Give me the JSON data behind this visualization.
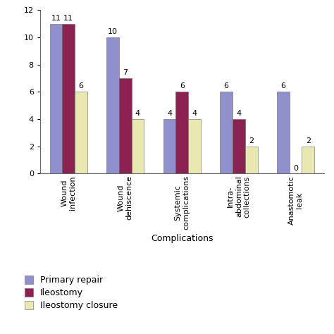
{
  "categories": [
    "Wound\ninfection",
    "Wound\ndehiscence",
    "Systemic\ncomplications",
    "Intra-\nabdominal\ncollections",
    "Anastomotic\nleak"
  ],
  "series": {
    "Primary repair": [
      11,
      10,
      4,
      6,
      6
    ],
    "Ileostomy": [
      11,
      7,
      6,
      4,
      0
    ],
    "Ileostomy closure": [
      6,
      4,
      4,
      2,
      2
    ]
  },
  "colors": {
    "Primary repair": "#9090cc",
    "Ileostomy": "#8b2252",
    "Ileostomy closure": "#e8e8b0"
  },
  "floor_color": "#aaaaaa",
  "xlabel": "Complications",
  "ylim": [
    0,
    12
  ],
  "yticks": [
    0,
    2,
    4,
    6,
    8,
    10,
    12
  ],
  "legend_labels": [
    "Primary repair",
    "Ileostomy",
    "Ileostomy closure"
  ],
  "bar_width": 0.22,
  "axis_fontsize": 9,
  "tick_fontsize": 8,
  "label_fontsize": 8,
  "legend_fontsize": 9,
  "background_color": "#ffffff"
}
